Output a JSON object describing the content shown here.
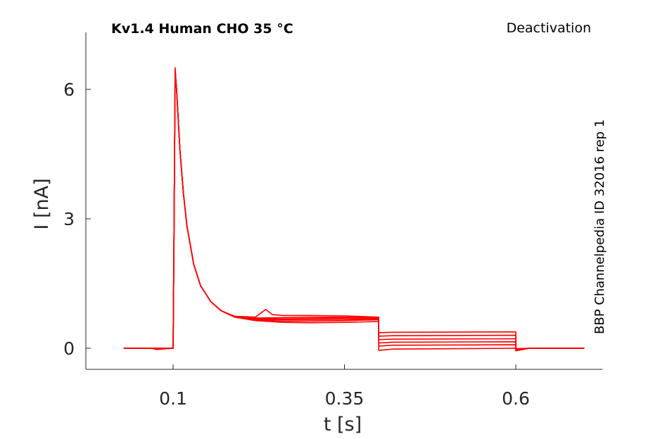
{
  "chart_data": {
    "type": "line",
    "title": "Kv1.4  Human  CHO  35 °C",
    "protocol": "Deactivation",
    "source": "BBP Channelpedia ID 32016 rep 1",
    "xlabel": "t [s]",
    "ylabel": "I [nA]",
    "xlim": [
      0.0,
      0.75
    ],
    "ylim": [
      -0.45,
      7.3
    ],
    "xticks": [
      0.1,
      0.35,
      0.6
    ],
    "xtick_labels": [
      "0.1",
      "0.35",
      "0.6"
    ],
    "yticks": [
      0,
      3,
      6
    ],
    "ytick_labels": [
      "0",
      "3",
      "6"
    ],
    "grid": false,
    "color": "#ff0000",
    "series": [
      {
        "values": [
          [
            0.028,
            0
          ],
          [
            0.07,
            0
          ],
          [
            0.075,
            -0.03
          ],
          [
            0.1,
            0
          ],
          [
            0.101,
            2.0
          ],
          [
            0.103,
            6.5
          ],
          [
            0.105,
            6.0
          ],
          [
            0.11,
            4.6
          ],
          [
            0.115,
            3.6
          ],
          [
            0.12,
            2.85
          ],
          [
            0.13,
            1.95
          ],
          [
            0.14,
            1.45
          ],
          [
            0.155,
            1.08
          ],
          [
            0.17,
            0.87
          ],
          [
            0.19,
            0.72
          ],
          [
            0.22,
            0.64
          ],
          [
            0.26,
            0.6
          ],
          [
            0.3,
            0.59
          ],
          [
            0.35,
            0.6
          ],
          [
            0.4,
            0.62
          ],
          [
            0.4,
            -0.05
          ],
          [
            0.42,
            -0.02
          ],
          [
            0.6,
            0.0
          ],
          [
            0.6,
            -0.06
          ],
          [
            0.62,
            0
          ],
          [
            0.7,
            0
          ]
        ]
      },
      {
        "values": [
          [
            0.028,
            0
          ],
          [
            0.1,
            0
          ],
          [
            0.101,
            2.0
          ],
          [
            0.103,
            6.45
          ],
          [
            0.105,
            6.0
          ],
          [
            0.11,
            4.6
          ],
          [
            0.115,
            3.6
          ],
          [
            0.12,
            2.85
          ],
          [
            0.13,
            1.95
          ],
          [
            0.14,
            1.45
          ],
          [
            0.155,
            1.08
          ],
          [
            0.17,
            0.87
          ],
          [
            0.19,
            0.72
          ],
          [
            0.22,
            0.66
          ],
          [
            0.26,
            0.63
          ],
          [
            0.3,
            0.63
          ],
          [
            0.35,
            0.64
          ],
          [
            0.4,
            0.66
          ],
          [
            0.4,
            0.05
          ],
          [
            0.42,
            0.07
          ],
          [
            0.6,
            0.08
          ],
          [
            0.6,
            -0.05
          ],
          [
            0.62,
            0
          ],
          [
            0.7,
            0
          ]
        ]
      },
      {
        "values": [
          [
            0.028,
            0
          ],
          [
            0.1,
            0
          ],
          [
            0.101,
            2.0
          ],
          [
            0.103,
            6.4
          ],
          [
            0.105,
            6.0
          ],
          [
            0.11,
            4.6
          ],
          [
            0.115,
            3.6
          ],
          [
            0.12,
            2.85
          ],
          [
            0.13,
            1.95
          ],
          [
            0.14,
            1.45
          ],
          [
            0.155,
            1.08
          ],
          [
            0.17,
            0.87
          ],
          [
            0.19,
            0.72
          ],
          [
            0.22,
            0.67
          ],
          [
            0.26,
            0.66
          ],
          [
            0.3,
            0.66
          ],
          [
            0.35,
            0.67
          ],
          [
            0.4,
            0.68
          ],
          [
            0.4,
            0.12
          ],
          [
            0.42,
            0.14
          ],
          [
            0.6,
            0.15
          ],
          [
            0.6,
            -0.04
          ],
          [
            0.62,
            0
          ],
          [
            0.7,
            0
          ]
        ]
      },
      {
        "values": [
          [
            0.028,
            0
          ],
          [
            0.1,
            0
          ],
          [
            0.101,
            2.0
          ],
          [
            0.103,
            6.4
          ],
          [
            0.105,
            6.0
          ],
          [
            0.11,
            4.6
          ],
          [
            0.115,
            3.6
          ],
          [
            0.12,
            2.85
          ],
          [
            0.13,
            1.95
          ],
          [
            0.14,
            1.45
          ],
          [
            0.155,
            1.08
          ],
          [
            0.17,
            0.87
          ],
          [
            0.19,
            0.72
          ],
          [
            0.22,
            0.68
          ],
          [
            0.26,
            0.68
          ],
          [
            0.3,
            0.69
          ],
          [
            0.35,
            0.7
          ],
          [
            0.4,
            0.7
          ],
          [
            0.4,
            0.2
          ],
          [
            0.42,
            0.21
          ],
          [
            0.6,
            0.22
          ],
          [
            0.6,
            -0.03
          ],
          [
            0.62,
            0
          ],
          [
            0.7,
            0
          ]
        ]
      },
      {
        "values": [
          [
            0.028,
            0
          ],
          [
            0.1,
            0
          ],
          [
            0.101,
            2.0
          ],
          [
            0.103,
            6.35
          ],
          [
            0.105,
            6.0
          ],
          [
            0.11,
            4.6
          ],
          [
            0.115,
            3.6
          ],
          [
            0.12,
            2.85
          ],
          [
            0.13,
            1.95
          ],
          [
            0.14,
            1.45
          ],
          [
            0.155,
            1.08
          ],
          [
            0.17,
            0.87
          ],
          [
            0.19,
            0.73
          ],
          [
            0.22,
            0.7
          ],
          [
            0.26,
            0.71
          ],
          [
            0.3,
            0.72
          ],
          [
            0.35,
            0.72
          ],
          [
            0.4,
            0.71
          ],
          [
            0.4,
            0.28
          ],
          [
            0.42,
            0.29
          ],
          [
            0.6,
            0.3
          ],
          [
            0.6,
            -0.02
          ],
          [
            0.62,
            0
          ],
          [
            0.7,
            0
          ]
        ]
      },
      {
        "values": [
          [
            0.028,
            0
          ],
          [
            0.1,
            0
          ],
          [
            0.101,
            2.0
          ],
          [
            0.103,
            6.35
          ],
          [
            0.105,
            6.0
          ],
          [
            0.11,
            4.6
          ],
          [
            0.115,
            3.6
          ],
          [
            0.12,
            2.85
          ],
          [
            0.13,
            1.95
          ],
          [
            0.14,
            1.45
          ],
          [
            0.155,
            1.08
          ],
          [
            0.17,
            0.87
          ],
          [
            0.19,
            0.74
          ],
          [
            0.22,
            0.72
          ],
          [
            0.235,
            0.9
          ],
          [
            0.245,
            0.78
          ],
          [
            0.26,
            0.76
          ],
          [
            0.3,
            0.76
          ],
          [
            0.35,
            0.75
          ],
          [
            0.4,
            0.72
          ],
          [
            0.4,
            0.36
          ],
          [
            0.42,
            0.37
          ],
          [
            0.6,
            0.38
          ],
          [
            0.6,
            -0.01
          ],
          [
            0.62,
            0
          ],
          [
            0.7,
            0
          ]
        ]
      }
    ]
  }
}
